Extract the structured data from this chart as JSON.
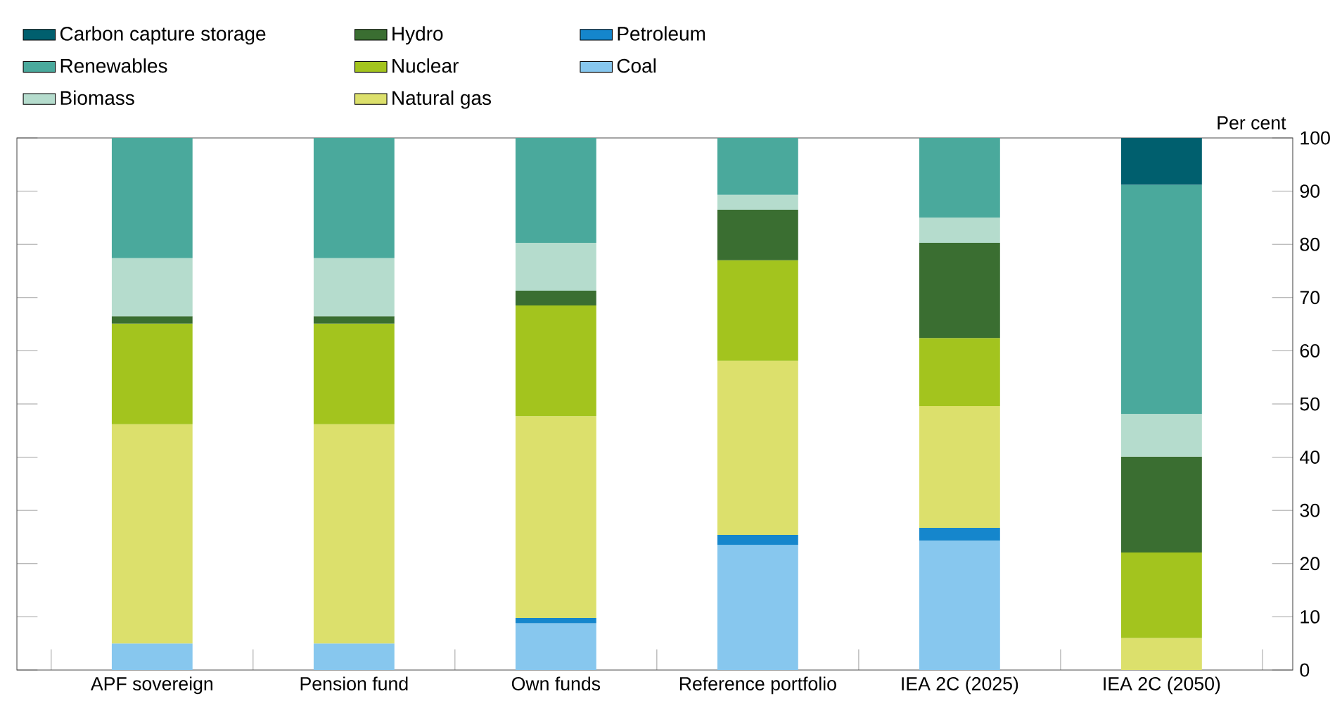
{
  "chart_data": {
    "type": "bar",
    "stacked": true,
    "ylabel": "Per cent",
    "categories": [
      "APF sovereign",
      "Pension fund",
      "Own funds",
      "Reference portfolio",
      "IEA 2C (2025)",
      "IEA 2C (2050)"
    ],
    "series": [
      {
        "name": "Coal",
        "color": "#87c7ee",
        "values": [
          5.0,
          5.0,
          8.8,
          23.5,
          24.3,
          0
        ]
      },
      {
        "name": "Petroleum",
        "color": "#1586cc",
        "values": [
          0,
          0,
          1.0,
          1.9,
          2.4,
          0
        ]
      },
      {
        "name": "Natural gas",
        "color": "#dce06c",
        "values": [
          41.2,
          41.2,
          37.9,
          32.7,
          22.9,
          6.0
        ]
      },
      {
        "name": "Nuclear",
        "color": "#a3c41e",
        "values": [
          18.9,
          18.9,
          20.8,
          18.9,
          12.8,
          16.1
        ]
      },
      {
        "name": "Hydro",
        "color": "#3a6e31",
        "values": [
          1.4,
          1.4,
          2.8,
          9.5,
          17.9,
          18.0
        ]
      },
      {
        "name": "Biomass",
        "color": "#b5dccd",
        "values": [
          10.9,
          10.9,
          9.0,
          2.8,
          4.7,
          8.0
        ]
      },
      {
        "name": "Renewables",
        "color": "#4aa99c",
        "values": [
          22.6,
          22.6,
          19.7,
          10.7,
          15.0,
          43.1
        ]
      },
      {
        "name": "Carbon capture storage",
        "color": "#005f6e",
        "values": [
          0,
          0,
          0,
          0,
          0,
          8.8
        ]
      }
    ],
    "ylim": [
      0,
      100
    ],
    "yticks": [
      0,
      10,
      20,
      30,
      40,
      50,
      60,
      70,
      80,
      90,
      100
    ],
    "legend": "top left"
  }
}
